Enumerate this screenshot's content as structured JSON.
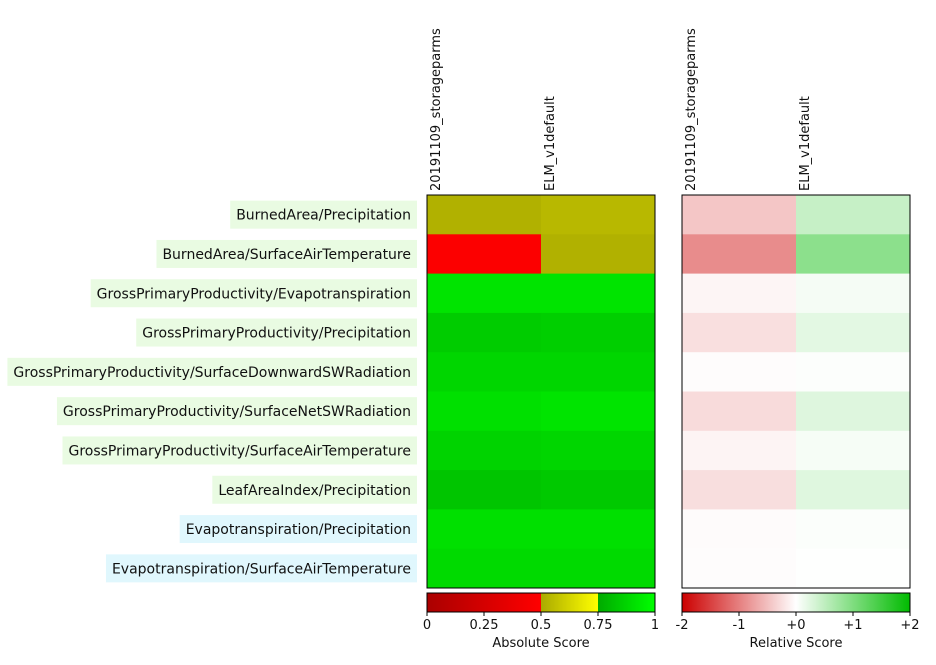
{
  "chart_data": [
    {
      "type": "heatmap",
      "title": "",
      "colorbar_label": "Absolute Score",
      "colorbar_ticks": [
        "0",
        "0.25",
        "0.5",
        "0.75",
        "1"
      ],
      "colorbar_stops": [
        {
          "from": 0.0,
          "to": 0.5,
          "colors": [
            "#aa0000",
            "#ff0000"
          ]
        },
        {
          "from": 0.5,
          "to": 0.75,
          "colors": [
            "#aaaa00",
            "#ffff00"
          ]
        },
        {
          "from": 0.75,
          "to": 1.0,
          "colors": [
            "#00aa00",
            "#00ff00"
          ]
        }
      ],
      "columns": [
        "20191109_storageparms",
        "ELM_v1default"
      ],
      "rows": [
        "BurnedArea/Precipitation",
        "BurnedArea/SurfaceAirTemperature",
        "GrossPrimaryProductivity/Evapotranspiration",
        "GrossPrimaryProductivity/Precipitation",
        "GrossPrimaryProductivity/SurfaceDownwardSWRadiation",
        "GrossPrimaryProductivity/SurfaceNetSWRadiation",
        "GrossPrimaryProductivity/SurfaceAirTemperature",
        "LeafAreaIndex/Precipitation",
        "Evapotranspiration/Precipitation",
        "Evapotranspiration/SurfaceAirTemperature"
      ],
      "row_colors": [
        "#e9fbe2",
        "#e9fbe2",
        "#e9fbe2",
        "#e9fbe2",
        "#e9fbe2",
        "#e9fbe2",
        "#e9fbe2",
        "#e9fbe2",
        "#e0f7fd",
        "#e0f7fd"
      ],
      "values": [
        [
          0.52,
          0.54
        ],
        [
          0.48,
          0.52
        ],
        [
          0.92,
          0.92
        ],
        [
          0.85,
          0.86
        ],
        [
          0.88,
          0.88
        ],
        [
          0.91,
          0.92
        ],
        [
          0.87,
          0.88
        ],
        [
          0.83,
          0.84
        ],
        [
          0.91,
          0.91
        ],
        [
          0.89,
          0.89
        ]
      ],
      "ylabel": "",
      "xlabel": ""
    },
    {
      "type": "heatmap",
      "title": "",
      "colorbar_label": "Relative Score",
      "colorbar_ticks": [
        "-2",
        "-1",
        "+0",
        "+1",
        "+2"
      ],
      "colorbar_range": [
        -2,
        2
      ],
      "columns": [
        "20191109_storageparms",
        "ELM_v1default"
      ],
      "rows": [
        "BurnedArea/Precipitation",
        "BurnedArea/SurfaceAirTemperature",
        "GrossPrimaryProductivity/Evapotranspiration",
        "GrossPrimaryProductivity/Precipitation",
        "GrossPrimaryProductivity/SurfaceDownwardSWRadiation",
        "GrossPrimaryProductivity/SurfaceNetSWRadiation",
        "GrossPrimaryProductivity/SurfaceAirTemperature",
        "LeafAreaIndex/Precipitation",
        "Evapotranspiration/Precipitation",
        "Evapotranspiration/SurfaceAirTemperature"
      ],
      "values": [
        [
          -0.45,
          0.45
        ],
        [
          -0.9,
          0.9
        ],
        [
          -0.08,
          0.08
        ],
        [
          -0.25,
          0.22
        ],
        [
          -0.02,
          0.02
        ],
        [
          -0.28,
          0.26
        ],
        [
          -0.09,
          0.07
        ],
        [
          -0.26,
          0.25
        ],
        [
          -0.03,
          0.03
        ],
        [
          -0.02,
          0.01
        ]
      ]
    }
  ]
}
